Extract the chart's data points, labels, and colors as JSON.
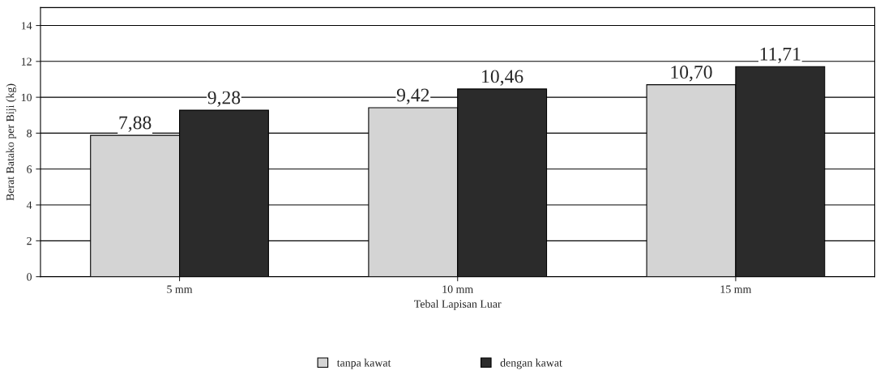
{
  "chart_data": {
    "type": "bar",
    "xlabel": "Tebal Lapisan Luar",
    "ylabel": "Berat Batako per Biji (kg)",
    "categories": [
      "5 mm",
      "10 mm",
      "15 mm"
    ],
    "series": [
      {
        "name": "tanpa kawat",
        "color": "#d4d4d4",
        "values": [
          7.88,
          9.42,
          10.7
        ],
        "value_labels": [
          "7,88",
          "9,42",
          "10,70"
        ]
      },
      {
        "name": "dengan kawat",
        "color": "#2b2b2b",
        "values": [
          9.28,
          10.46,
          11.71
        ],
        "value_labels": [
          "9,28",
          "10,46",
          "11,71"
        ]
      }
    ],
    "ylim": [
      0,
      15
    ],
    "yticks": [
      0,
      2,
      4,
      6,
      8,
      10,
      12,
      14
    ],
    "grid": "y",
    "legend": "bottom"
  }
}
